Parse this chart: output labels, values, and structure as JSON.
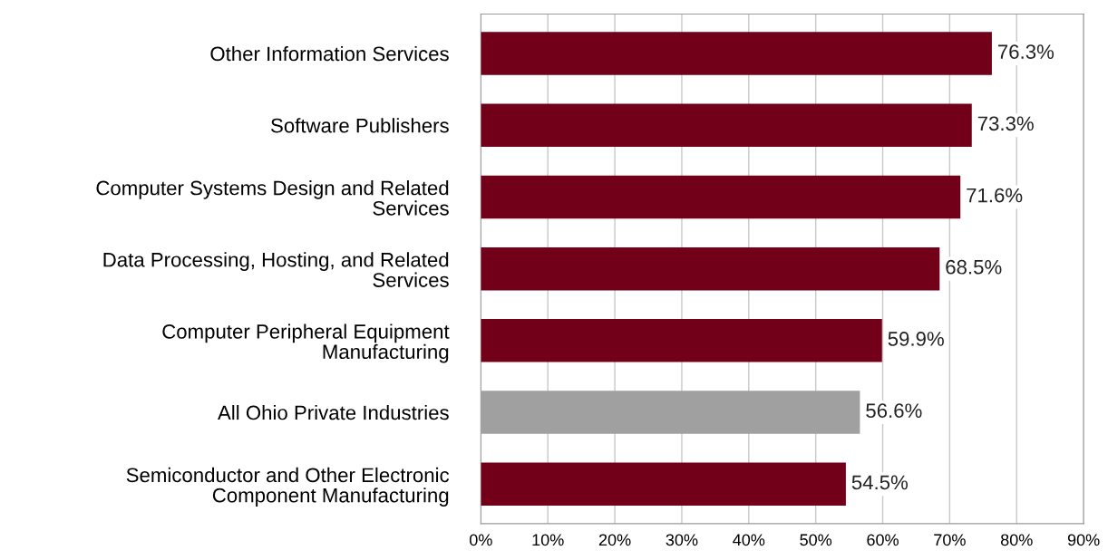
{
  "chart_data": {
    "type": "bar",
    "orientation": "horizontal",
    "categories": [
      "Other Information Services",
      "Software Publishers",
      "Computer Systems Design and Related\nServices",
      "Data Processing, Hosting, and Related\nServices",
      "Computer Peripheral Equipment\nManufacturing",
      "All Ohio Private Industries",
      "Semiconductor and Other Electronic\nComponent Manufacturing"
    ],
    "values": [
      76.3,
      73.3,
      71.6,
      68.5,
      59.9,
      56.6,
      54.5
    ],
    "colors": [
      "#720019",
      "#720019",
      "#720019",
      "#720019",
      "#720019",
      "#a0a0a0",
      "#720019"
    ],
    "value_labels": [
      "76.3%",
      "73.3%",
      "71.6%",
      "68.5%",
      "59.9%",
      "56.6%",
      "54.5%"
    ],
    "xlim": [
      0,
      90
    ],
    "xticks": [
      {
        "value": 0,
        "label": "0%"
      },
      {
        "value": 10,
        "label": "10%"
      },
      {
        "value": 20,
        "label": "20%"
      },
      {
        "value": 30,
        "label": "30%"
      },
      {
        "value": 40,
        "label": "40%"
      },
      {
        "value": 50,
        "label": "50%"
      },
      {
        "value": 60,
        "label": "60%"
      },
      {
        "value": 70,
        "label": "70%"
      },
      {
        "value": 80,
        "label": "80%"
      },
      {
        "value": 90,
        "label": "90%"
      }
    ],
    "grid": "x"
  }
}
